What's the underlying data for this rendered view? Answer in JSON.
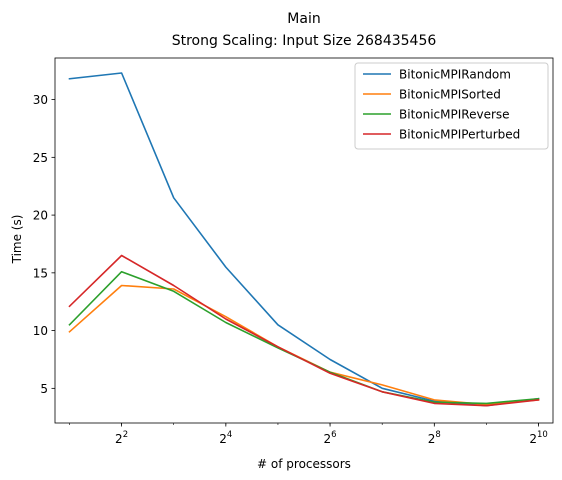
{
  "chart_data": {
    "type": "line",
    "title": "Main",
    "subtitle": "Strong Scaling: Input Size 268435456",
    "xlabel": "# of processors",
    "ylabel": "Time (s)",
    "xscale": "log2",
    "x": [
      2,
      4,
      8,
      16,
      32,
      64,
      128,
      256,
      512,
      1024
    ],
    "x_ticks": [
      {
        "value": 4,
        "base": "2",
        "exp": "2"
      },
      {
        "value": 16,
        "base": "2",
        "exp": "4"
      },
      {
        "value": 64,
        "base": "2",
        "exp": "6"
      },
      {
        "value": 256,
        "base": "2",
        "exp": "8"
      },
      {
        "value": 1024,
        "base": "2",
        "exp": "10"
      }
    ],
    "y_ticks": [
      5,
      10,
      15,
      20,
      25,
      30
    ],
    "xlim": [
      1.65,
      1241
    ],
    "ylim": [
      2.0,
      33.6
    ],
    "grid": false,
    "legend_position": "top-right",
    "series": [
      {
        "name": "BitonicMPIRandom",
        "color": "#1f77b4",
        "values": [
          31.8,
          32.3,
          21.5,
          15.5,
          10.5,
          7.5,
          5.0,
          3.9,
          3.5,
          4.1
        ]
      },
      {
        "name": "BitonicMPISorted",
        "color": "#ff7f0e",
        "values": [
          9.9,
          13.9,
          13.6,
          11.2,
          8.6,
          6.4,
          5.3,
          4.0,
          3.6,
          4.0
        ]
      },
      {
        "name": "BitonicMPIReverse",
        "color": "#2ca02c",
        "values": [
          10.5,
          15.1,
          13.4,
          10.7,
          8.5,
          6.4,
          4.7,
          3.8,
          3.7,
          4.1
        ]
      },
      {
        "name": "BitonicMPIPerturbed",
        "color": "#d62728",
        "values": [
          12.1,
          16.5,
          13.9,
          11.0,
          8.6,
          6.3,
          4.7,
          3.7,
          3.5,
          4.0
        ]
      }
    ]
  }
}
